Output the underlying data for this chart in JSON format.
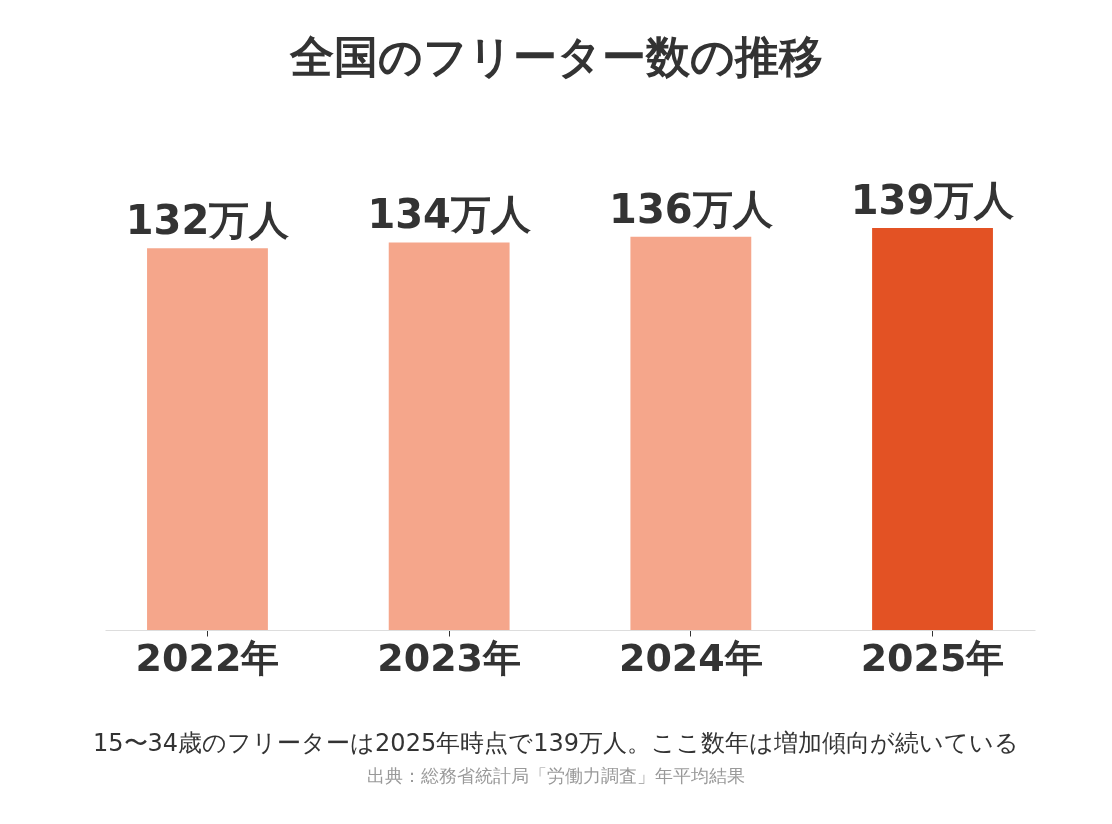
{
  "chart_data": {
    "type": "bar",
    "title": "全国のフリーター数の推移",
    "categories": [
      "2022年",
      "2023年",
      "2024年",
      "2025年"
    ],
    "values": [
      132,
      134,
      136,
      139
    ],
    "colors": [
      "#f5a68b",
      "#f5a68b",
      "#f5a68b",
      "#e35224"
    ],
    "value_labels": [
      "132万人",
      "134万人",
      "136万人",
      "139万人"
    ],
    "annotations": [
      "15〜34歳のフリーターは2025年時点で139万人。ここ数年は増加傾向が続いている",
      "出典：総務省統計局「労働力調査」年平均結果"
    ]
  }
}
